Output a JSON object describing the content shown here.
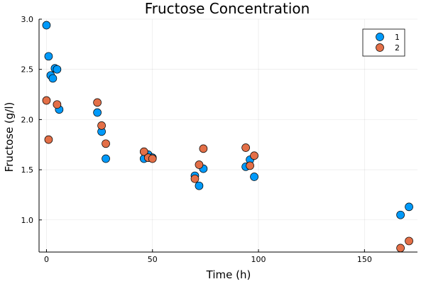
{
  "chart_data": {
    "type": "scatter",
    "title": "Fructose Concentration",
    "xlabel": "Time (h)",
    "ylabel": "Fructose (g/l)",
    "xlim": [
      -3.5,
      175
    ],
    "ylim": [
      0.68,
      3.0
    ],
    "xticks": [
      0,
      50,
      100,
      150
    ],
    "xtick_labels": [
      "0",
      "50",
      "100",
      "150"
    ],
    "yticks": [
      1.0,
      1.5,
      2.0,
      2.5,
      3.0
    ],
    "ytick_labels": [
      "1.0",
      "1.5",
      "2.0",
      "2.5",
      "3.0"
    ],
    "grid": true,
    "legend": "top-right",
    "series": [
      {
        "name": "1",
        "color": "#009AFA",
        "points": [
          [
            0,
            2.94
          ],
          [
            1,
            2.63
          ],
          [
            2,
            2.44
          ],
          [
            3,
            2.41
          ],
          [
            4,
            2.51
          ],
          [
            5,
            2.5
          ],
          [
            6,
            2.1
          ],
          [
            24,
            2.07
          ],
          [
            26,
            1.88
          ],
          [
            28,
            1.61
          ],
          [
            46,
            1.61
          ],
          [
            48,
            1.65
          ],
          [
            50,
            1.62
          ],
          [
            70,
            1.44
          ],
          [
            72,
            1.34
          ],
          [
            74,
            1.51
          ],
          [
            94,
            1.53
          ],
          [
            96,
            1.6
          ],
          [
            98,
            1.43
          ],
          [
            167,
            1.05
          ],
          [
            171,
            1.13
          ]
        ]
      },
      {
        "name": "2",
        "color": "#E36F47",
        "points": [
          [
            0,
            2.19
          ],
          [
            1,
            1.8
          ],
          [
            5,
            2.15
          ],
          [
            24,
            2.17
          ],
          [
            26,
            1.94
          ],
          [
            28,
            1.76
          ],
          [
            46,
            1.68
          ],
          [
            48,
            1.62
          ],
          [
            50,
            1.61
          ],
          [
            70,
            1.41
          ],
          [
            72,
            1.55
          ],
          [
            74,
            1.71
          ],
          [
            94,
            1.72
          ],
          [
            96,
            1.54
          ],
          [
            98,
            1.64
          ],
          [
            167,
            0.72
          ],
          [
            171,
            0.79
          ]
        ]
      }
    ]
  }
}
